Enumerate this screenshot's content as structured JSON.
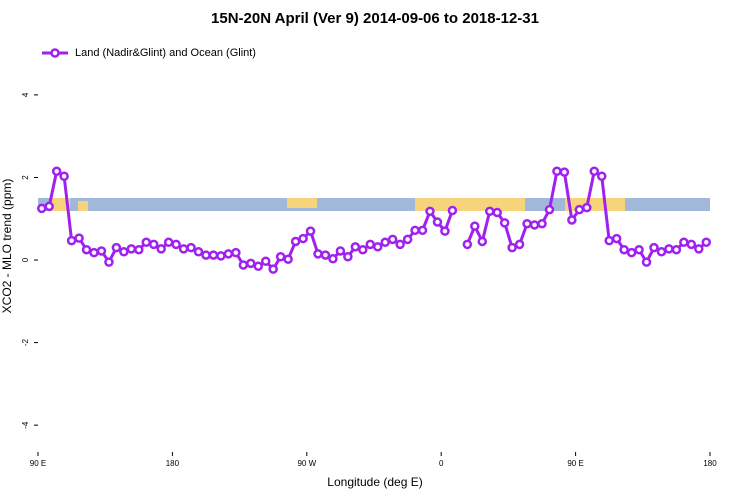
{
  "chart_data": {
    "type": "line",
    "title": "15N-20N April (Ver 9)   2014-09-06 to 2018-12-31",
    "x_label": "Longitude (deg E)",
    "y_label": "XCO2 - MLO trend (ppm)",
    "legend": "topleft",
    "xlim": [
      90,
      540
    ],
    "xticks": [
      {
        "value": 90,
        "label": "90 E"
      },
      180,
      {
        "value": 270,
        "label": "90 W"
      },
      {
        "value": 360,
        "label": "0"
      },
      {
        "value": 450,
        "label": "90 E"
      },
      {
        "value": 540,
        "label": "180"
      }
    ],
    "ylim": [
      -4.65,
      5.33
    ],
    "yticks": [
      4,
      2,
      0,
      -2,
      -4
    ],
    "x": [
      92.5,
      97.5,
      102.5,
      107.5,
      112.5,
      117.5,
      122.5,
      127.5,
      132.5,
      137.5,
      142.5,
      147.5,
      152.5,
      157.5,
      162.5,
      167.5,
      172.5,
      177.5,
      182.5,
      187.5,
      192.5,
      197.5,
      202.5,
      207.5,
      212.5,
      217.5,
      222.5,
      227.5,
      232.5,
      237.5,
      242.5,
      247.5,
      252.5,
      257.5,
      262.5,
      267.5,
      272.5,
      277.5,
      282.5,
      287.5,
      292.5,
      297.5,
      302.5,
      307.5,
      312.5,
      317.5,
      322.5,
      327.5,
      332.5,
      337.5,
      342.5,
      347.5,
      352.5,
      357.5,
      362.5,
      367.5,
      372.5,
      377.5,
      382.5,
      387.5,
      392.5,
      397.5,
      402.5,
      407.5,
      412.5,
      417.5,
      422.5,
      427.5,
      432.5,
      437.5,
      442.5,
      447.5,
      452.5,
      457.5,
      462.5,
      467.5,
      472.5,
      477.5,
      482.5,
      487.5,
      492.5,
      497.5,
      502.5,
      507.5,
      512.5,
      517.5,
      522.5,
      527.5,
      532.5,
      537.5
    ],
    "series": [
      {
        "name": "Land (Nadir&Glint) and Ocean (Glint)",
        "color": "#a020f0",
        "values": [
          1.25,
          1.3,
          2.15,
          2.03,
          0.47,
          0.53,
          0.25,
          0.18,
          0.22,
          -0.05,
          0.3,
          0.2,
          0.27,
          0.25,
          0.43,
          0.38,
          0.27,
          0.43,
          0.38,
          0.27,
          0.3,
          0.2,
          0.12,
          0.12,
          0.1,
          0.15,
          0.18,
          -0.12,
          -0.08,
          -0.15,
          -0.03,
          -0.22,
          0.08,
          0.02,
          0.45,
          0.52,
          0.7,
          0.15,
          0.12,
          0.03,
          0.22,
          0.08,
          0.32,
          0.25,
          0.38,
          0.32,
          0.43,
          0.5,
          0.38,
          0.5,
          0.72,
          0.72,
          1.18,
          0.92,
          0.7,
          1.2,
          null,
          0.38,
          0.82,
          0.45,
          1.18,
          1.15,
          0.9,
          0.3,
          0.38,
          0.88,
          0.85,
          0.88,
          1.22,
          2.15,
          2.13,
          0.97,
          1.22,
          1.27,
          2.15,
          2.03,
          0.47,
          0.52,
          0.25,
          0.18,
          0.25,
          -0.05,
          0.3,
          0.2,
          0.27,
          0.25,
          0.43,
          0.38,
          0.27,
          0.43
        ]
      }
    ]
  }
}
